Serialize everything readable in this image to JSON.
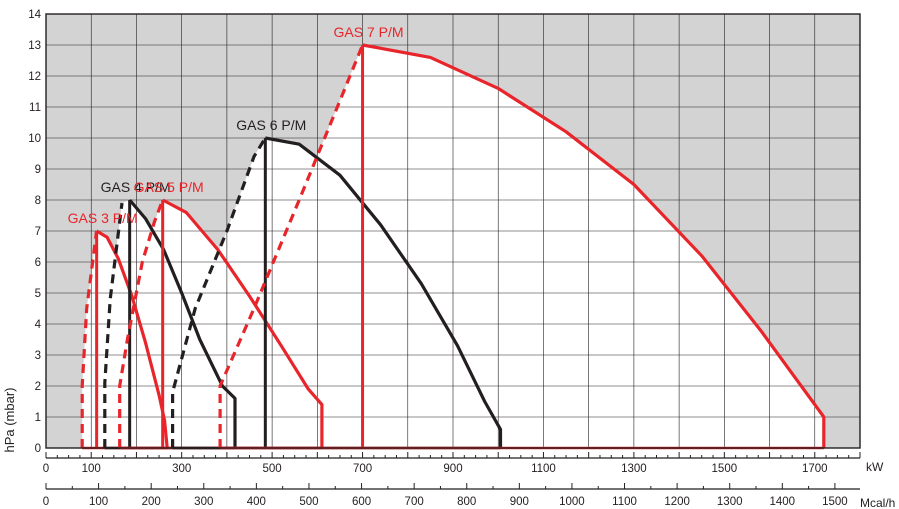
{
  "chart_data": {
    "type": "line",
    "title": "",
    "ylabel": "hPa (mbar)",
    "ylim": [
      0,
      14
    ],
    "y_ticks": [
      "0",
      "1",
      "2",
      "3",
      "4",
      "5",
      "6",
      "7",
      "8",
      "9",
      "10",
      "11",
      "12",
      "13",
      "14"
    ],
    "x_axis_kw": {
      "unit": "kW",
      "ticks": [
        "0",
        "100",
        "300",
        "500",
        "700",
        "900",
        "1100",
        "1300",
        "1500",
        "1700"
      ],
      "tick_values": [
        0,
        100,
        300,
        500,
        700,
        900,
        1100,
        1300,
        1500,
        1700
      ],
      "range": [
        0,
        1800
      ]
    },
    "x_axis_mcal": {
      "unit": "Mcal/h",
      "ticks": [
        "0",
        "100",
        "200",
        "300",
        "400",
        "500",
        "600",
        "700",
        "800",
        "900",
        "1000",
        "1100",
        "1200",
        "1300",
        "1400",
        "1500"
      ],
      "tick_values": [
        0,
        100,
        200,
        300,
        400,
        500,
        600,
        700,
        800,
        900,
        1000,
        1100,
        1200,
        1300,
        1400,
        1500
      ],
      "range": [
        0,
        1548
      ]
    },
    "grid": true,
    "colors": {
      "red": "#e8252b",
      "black": "#231f20",
      "shade": "#d3d3d3",
      "grid": "#231f20"
    },
    "series": [
      {
        "name": "GAS 3 P/M",
        "color": "#e8252b",
        "min_output_kw": 130,
        "dashed_start": [
          [
            80,
            0
          ],
          [
            80,
            2.0
          ],
          [
            90,
            4.5
          ],
          [
            112,
            7.0
          ]
        ],
        "max_curve": [
          [
            112,
            7.0
          ],
          [
            135,
            6.8
          ],
          [
            160,
            6.1
          ],
          [
            190,
            4.9
          ],
          [
            220,
            3.4
          ],
          [
            250,
            1.7
          ],
          [
            262,
            0.9
          ],
          [
            268,
            0
          ]
        ]
      },
      {
        "name": "GAS 4 P/M",
        "color": "#231f20",
        "min_output_kw": 185,
        "dashed_start": [
          [
            130,
            0
          ],
          [
            130,
            2.1
          ],
          [
            142,
            4.8
          ],
          [
            168,
            7.9
          ]
        ],
        "max_curve": [
          [
            185,
            8.0
          ],
          [
            220,
            7.4
          ],
          [
            260,
            6.4
          ],
          [
            300,
            5.0
          ],
          [
            340,
            3.5
          ],
          [
            390,
            2.0
          ],
          [
            418,
            1.6
          ],
          [
            418,
            0
          ]
        ]
      },
      {
        "name": "GAS 5 P/M",
        "color": "#e8252b",
        "min_output_kw": 310,
        "dashed_start": [
          [
            163,
            0
          ],
          [
            163,
            2.0
          ],
          [
            180,
            3.5
          ],
          [
            213,
            6.0
          ],
          [
            240,
            7.3
          ],
          [
            258,
            8.0
          ]
        ],
        "max_curve": [
          [
            258,
            8.0
          ],
          [
            310,
            7.6
          ],
          [
            380,
            6.4
          ],
          [
            450,
            4.9
          ],
          [
            520,
            3.3
          ],
          [
            580,
            1.9
          ],
          [
            610,
            1.4
          ],
          [
            610,
            0
          ]
        ]
      },
      {
        "name": "GAS 6 P/M",
        "color": "#231f20",
        "min_output_kw": 530,
        "dashed_start": [
          [
            280,
            0
          ],
          [
            280,
            1.8
          ],
          [
            330,
            4.5
          ],
          [
            400,
            7.0
          ],
          [
            460,
            9.4
          ],
          [
            485,
            10.0
          ]
        ],
        "max_curve": [
          [
            485,
            10.0
          ],
          [
            560,
            9.8
          ],
          [
            650,
            8.8
          ],
          [
            740,
            7.2
          ],
          [
            830,
            5.3
          ],
          [
            910,
            3.3
          ],
          [
            970,
            1.5
          ],
          [
            1005,
            0.6
          ],
          [
            1005,
            0
          ]
        ]
      },
      {
        "name": "GAS 7 P/M",
        "color": "#e8252b",
        "min_output_kw": 810,
        "dashed_start": [
          [
            385,
            0
          ],
          [
            385,
            2.0
          ],
          [
            460,
            4.5
          ],
          [
            560,
            8.0
          ],
          [
            650,
            11.2
          ],
          [
            700,
            13.0
          ]
        ],
        "max_curve": [
          [
            700,
            13.0
          ],
          [
            850,
            12.6
          ],
          [
            1000,
            11.6
          ],
          [
            1150,
            10.2
          ],
          [
            1300,
            8.5
          ],
          [
            1450,
            6.2
          ],
          [
            1580,
            3.8
          ],
          [
            1700,
            1.4
          ],
          [
            1720,
            1.0
          ],
          [
            1720,
            0
          ]
        ]
      }
    ],
    "labels": {
      "ylabel": "hPa (mbar)",
      "kw_unit": "kW",
      "mcal_unit": "Mcal/h"
    }
  }
}
